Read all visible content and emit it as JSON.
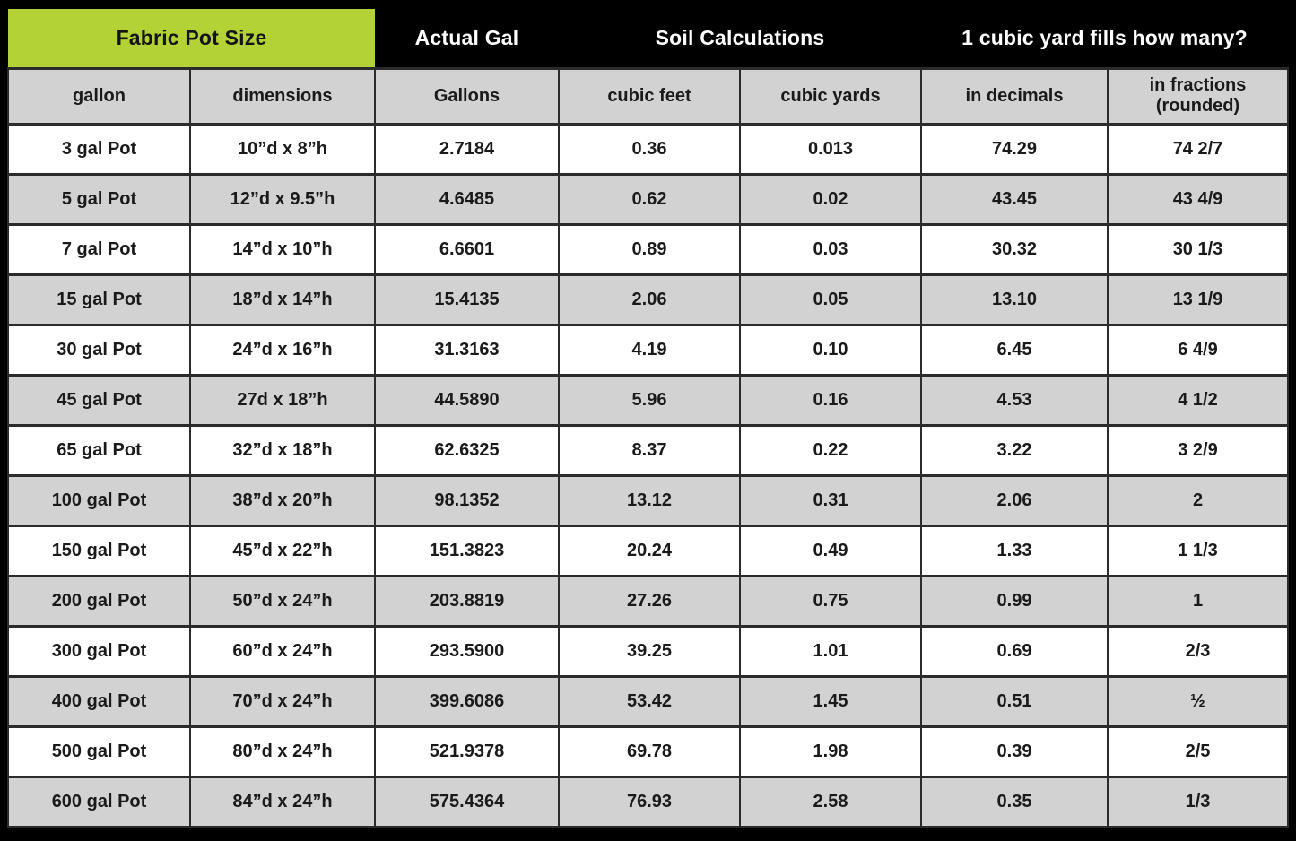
{
  "banner": {
    "fabric_pot_size": "Fabric Pot Size",
    "actual_gal": "Actual Gal",
    "soil_calculations": "Soil Calculations",
    "cubic_yard_fills": "1 cubic yard fills how many?"
  },
  "columns": {
    "gallon": "gallon",
    "dimensions": "dimensions",
    "gallons": "Gallons",
    "cubic_feet": "cubic feet",
    "cubic_yards": "cubic yards",
    "in_decimals": "in decimals",
    "in_fractions_line1": "in fractions",
    "in_fractions_line2": "(rounded)"
  },
  "colors": {
    "accent_green": "#b2d235",
    "banner_black": "#000000",
    "alt_row_gray": "#d2d2d2",
    "grid_line": "#2b2b2b",
    "text_dark": "#1a1a1a",
    "text_white": "#ffffff"
  },
  "chart_data": {
    "type": "table",
    "title": "Fabric Pot Size — Soil Calculations — 1 cubic yard fills how many?",
    "column_groups": [
      "Fabric Pot Size",
      "Actual Gal",
      "Soil Calculations",
      "1 cubic yard fills how many?"
    ],
    "columns": [
      "gallon",
      "dimensions",
      "Gallons",
      "cubic feet",
      "cubic yards",
      "in decimals",
      "in fractions (rounded)"
    ],
    "rows": [
      [
        "3 gal Pot",
        "10”d x 8”h",
        "2.7184",
        "0.36",
        "0.013",
        "74.29",
        "74 2/7"
      ],
      [
        "5 gal Pot",
        "12”d x 9.5”h",
        "4.6485",
        "0.62",
        "0.02",
        "43.45",
        "43 4/9"
      ],
      [
        "7 gal Pot",
        "14”d x 10”h",
        "6.6601",
        "0.89",
        "0.03",
        "30.32",
        "30 1/3"
      ],
      [
        "15 gal Pot",
        "18”d x 14”h",
        "15.4135",
        "2.06",
        "0.05",
        "13.10",
        "13 1/9"
      ],
      [
        "30 gal Pot",
        "24”d x 16”h",
        "31.3163",
        "4.19",
        "0.10",
        "6.45",
        "6 4/9"
      ],
      [
        "45 gal Pot",
        "27d x 18”h",
        "44.5890",
        "5.96",
        "0.16",
        "4.53",
        "4 1/2"
      ],
      [
        "65 gal Pot",
        "32”d x 18”h",
        "62.6325",
        "8.37",
        "0.22",
        "3.22",
        "3 2/9"
      ],
      [
        "100 gal Pot",
        "38”d x 20”h",
        "98.1352",
        "13.12",
        "0.31",
        "2.06",
        "2"
      ],
      [
        "150 gal Pot",
        "45”d x 22”h",
        "151.3823",
        "20.24",
        "0.49",
        "1.33",
        "1 1/3"
      ],
      [
        "200 gal Pot",
        "50”d x 24”h",
        "203.8819",
        "27.26",
        "0.75",
        "0.99",
        "1"
      ],
      [
        "300 gal Pot",
        "60”d x 24”h",
        "293.5900",
        "39.25",
        "1.01",
        "0.69",
        "2/3"
      ],
      [
        "400 gal Pot",
        "70”d x 24”h",
        "399.6086",
        "53.42",
        "1.45",
        "0.51",
        "½"
      ],
      [
        "500 gal Pot",
        "80”d x 24”h",
        "521.9378",
        "69.78",
        "1.98",
        "0.39",
        "2/5"
      ],
      [
        "600 gal Pot",
        "84”d x 24”h",
        "575.4364",
        "76.93",
        "2.58",
        "0.35",
        "1/3"
      ]
    ]
  }
}
